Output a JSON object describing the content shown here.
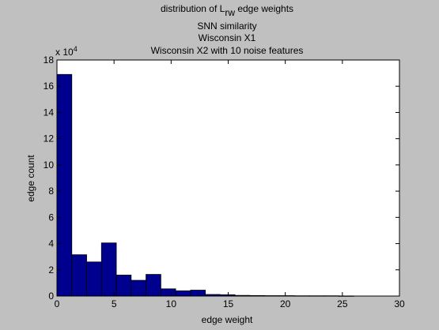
{
  "chart_data": {
    "type": "bar",
    "title_lines": [
      {
        "prefix": "distribution of L",
        "subscript": "rw",
        "suffix": " edge weights"
      },
      {
        "text": "SNN similarity"
      },
      {
        "text": "Wisconsin X1"
      },
      {
        "text": "Wisconsin X2 with 10 noise features"
      }
    ],
    "xlabel": "edge weight",
    "ylabel": "edge count",
    "y_multiplier": {
      "base": "x 10",
      "exponent": "4"
    },
    "xlim": [
      0,
      30
    ],
    "ylim": [
      0,
      18
    ],
    "xticks": [
      "0",
      "5",
      "10",
      "15",
      "20",
      "25",
      "30"
    ],
    "yticks": [
      "0",
      "2",
      "4",
      "6",
      "8",
      "10",
      "12",
      "14",
      "16",
      "18"
    ],
    "bin_width": 1.3,
    "bin_start": 0,
    "values": [
      16.9,
      3.15,
      2.6,
      4.05,
      1.6,
      1.2,
      1.65,
      0.55,
      0.4,
      0.45,
      0.12,
      0.1,
      0.05,
      0.04,
      0.03,
      0.03,
      0.02,
      0.02,
      0.02,
      0.01
    ],
    "bar_color": "#00008f",
    "background_color": "#c0c0c0",
    "axes_color": "#ffffff"
  }
}
